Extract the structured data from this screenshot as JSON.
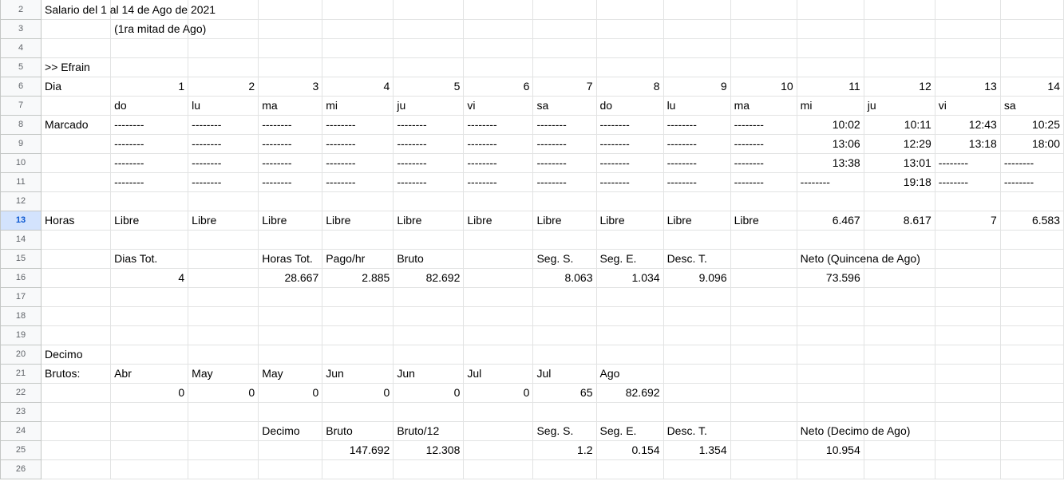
{
  "rows": [
    {
      "num": "2",
      "cells": [
        {
          "c": 1,
          "v": "Salario del 1 al 14 de Ago de 2021"
        }
      ]
    },
    {
      "num": "3",
      "cells": [
        {
          "c": 2,
          "v": "(1ra mitad de Ago)"
        }
      ]
    },
    {
      "num": "4",
      "cells": []
    },
    {
      "num": "5",
      "cells": [
        {
          "c": 1,
          "v": ">> Efrain"
        }
      ]
    },
    {
      "num": "6",
      "cells": [
        {
          "c": 1,
          "v": "Dia"
        },
        {
          "c": 2,
          "v": "1",
          "n": true
        },
        {
          "c": 3,
          "v": "2",
          "n": true
        },
        {
          "c": 4,
          "v": "3",
          "n": true
        },
        {
          "c": 5,
          "v": "4",
          "n": true
        },
        {
          "c": 6,
          "v": "5",
          "n": true
        },
        {
          "c": 7,
          "v": "6",
          "n": true
        },
        {
          "c": 8,
          "v": "7",
          "n": true
        },
        {
          "c": 9,
          "v": "8",
          "n": true
        },
        {
          "c": 10,
          "v": "9",
          "n": true
        },
        {
          "c": 11,
          "v": "10",
          "n": true
        },
        {
          "c": 12,
          "v": "11",
          "n": true
        },
        {
          "c": 13,
          "v": "12",
          "n": true
        },
        {
          "c": 14,
          "v": "13",
          "n": true
        },
        {
          "c": 15,
          "v": "14",
          "n": true
        }
      ]
    },
    {
      "num": "7",
      "cells": [
        {
          "c": 2,
          "v": "do"
        },
        {
          "c": 3,
          "v": "lu"
        },
        {
          "c": 4,
          "v": "ma"
        },
        {
          "c": 5,
          "v": "mi"
        },
        {
          "c": 6,
          "v": "ju"
        },
        {
          "c": 7,
          "v": "vi"
        },
        {
          "c": 8,
          "v": "sa"
        },
        {
          "c": 9,
          "v": "do"
        },
        {
          "c": 10,
          "v": "lu"
        },
        {
          "c": 11,
          "v": "ma"
        },
        {
          "c": 12,
          "v": "mi"
        },
        {
          "c": 13,
          "v": "ju"
        },
        {
          "c": 14,
          "v": "vi"
        },
        {
          "c": 15,
          "v": "sa"
        }
      ]
    },
    {
      "num": "8",
      "cells": [
        {
          "c": 1,
          "v": "Marcado"
        },
        {
          "c": 2,
          "v": "--------"
        },
        {
          "c": 3,
          "v": "--------"
        },
        {
          "c": 4,
          "v": "--------"
        },
        {
          "c": 5,
          "v": "--------"
        },
        {
          "c": 6,
          "v": "--------"
        },
        {
          "c": 7,
          "v": "--------"
        },
        {
          "c": 8,
          "v": "--------"
        },
        {
          "c": 9,
          "v": "--------"
        },
        {
          "c": 10,
          "v": "--------"
        },
        {
          "c": 11,
          "v": "--------"
        },
        {
          "c": 12,
          "v": "10:02",
          "n": true
        },
        {
          "c": 13,
          "v": "10:11",
          "n": true
        },
        {
          "c": 14,
          "v": "12:43",
          "n": true
        },
        {
          "c": 15,
          "v": "10:25",
          "n": true
        }
      ]
    },
    {
      "num": "9",
      "cells": [
        {
          "c": 2,
          "v": "--------"
        },
        {
          "c": 3,
          "v": "--------"
        },
        {
          "c": 4,
          "v": "--------"
        },
        {
          "c": 5,
          "v": "--------"
        },
        {
          "c": 6,
          "v": "--------"
        },
        {
          "c": 7,
          "v": "--------"
        },
        {
          "c": 8,
          "v": "--------"
        },
        {
          "c": 9,
          "v": "--------"
        },
        {
          "c": 10,
          "v": "--------"
        },
        {
          "c": 11,
          "v": "--------"
        },
        {
          "c": 12,
          "v": "13:06",
          "n": true
        },
        {
          "c": 13,
          "v": "12:29",
          "n": true
        },
        {
          "c": 14,
          "v": "13:18",
          "n": true
        },
        {
          "c": 15,
          "v": "18:00",
          "n": true
        }
      ]
    },
    {
      "num": "10",
      "cells": [
        {
          "c": 2,
          "v": "--------"
        },
        {
          "c": 3,
          "v": "--------"
        },
        {
          "c": 4,
          "v": "--------"
        },
        {
          "c": 5,
          "v": "--------"
        },
        {
          "c": 6,
          "v": "--------"
        },
        {
          "c": 7,
          "v": "--------"
        },
        {
          "c": 8,
          "v": "--------"
        },
        {
          "c": 9,
          "v": "--------"
        },
        {
          "c": 10,
          "v": "--------"
        },
        {
          "c": 11,
          "v": "--------"
        },
        {
          "c": 12,
          "v": "13:38",
          "n": true
        },
        {
          "c": 13,
          "v": "13:01",
          "n": true
        },
        {
          "c": 14,
          "v": "--------"
        },
        {
          "c": 15,
          "v": "--------"
        }
      ]
    },
    {
      "num": "11",
      "cells": [
        {
          "c": 2,
          "v": "--------"
        },
        {
          "c": 3,
          "v": "--------"
        },
        {
          "c": 4,
          "v": "--------"
        },
        {
          "c": 5,
          "v": "--------"
        },
        {
          "c": 6,
          "v": "--------"
        },
        {
          "c": 7,
          "v": "--------"
        },
        {
          "c": 8,
          "v": "--------"
        },
        {
          "c": 9,
          "v": "--------"
        },
        {
          "c": 10,
          "v": "--------"
        },
        {
          "c": 11,
          "v": "--------"
        },
        {
          "c": 12,
          "v": "--------"
        },
        {
          "c": 13,
          "v": "19:18",
          "n": true
        },
        {
          "c": 14,
          "v": "--------"
        },
        {
          "c": 15,
          "v": "--------"
        }
      ]
    },
    {
      "num": "12",
      "cells": []
    },
    {
      "num": "13",
      "selected": true,
      "cells": [
        {
          "c": 1,
          "v": "Horas"
        },
        {
          "c": 2,
          "v": "Libre"
        },
        {
          "c": 3,
          "v": "Libre"
        },
        {
          "c": 4,
          "v": "Libre"
        },
        {
          "c": 5,
          "v": "Libre"
        },
        {
          "c": 6,
          "v": "Libre"
        },
        {
          "c": 7,
          "v": "Libre"
        },
        {
          "c": 8,
          "v": "Libre"
        },
        {
          "c": 9,
          "v": "Libre"
        },
        {
          "c": 10,
          "v": "Libre"
        },
        {
          "c": 11,
          "v": "Libre"
        },
        {
          "c": 12,
          "v": "6.467",
          "n": true
        },
        {
          "c": 13,
          "v": "8.617",
          "n": true
        },
        {
          "c": 14,
          "v": "7",
          "n": true
        },
        {
          "c": 15,
          "v": "6.583",
          "n": true
        }
      ]
    },
    {
      "num": "14",
      "cells": []
    },
    {
      "num": "15",
      "cells": [
        {
          "c": 2,
          "v": "Dias Tot."
        },
        {
          "c": 4,
          "v": "Horas Tot."
        },
        {
          "c": 5,
          "v": "Pago/hr"
        },
        {
          "c": 6,
          "v": "Bruto"
        },
        {
          "c": 8,
          "v": "Seg. S."
        },
        {
          "c": 9,
          "v": "Seg. E."
        },
        {
          "c": 10,
          "v": "Desc. T."
        },
        {
          "c": 12,
          "v": "Neto (Quincena de Ago)"
        }
      ]
    },
    {
      "num": "16",
      "cells": [
        {
          "c": 2,
          "v": "4",
          "n": true
        },
        {
          "c": 4,
          "v": "28.667",
          "n": true
        },
        {
          "c": 5,
          "v": "2.885",
          "n": true
        },
        {
          "c": 6,
          "v": "82.692",
          "n": true
        },
        {
          "c": 8,
          "v": "8.063",
          "n": true
        },
        {
          "c": 9,
          "v": "1.034",
          "n": true
        },
        {
          "c": 10,
          "v": "9.096",
          "n": true
        },
        {
          "c": 12,
          "v": "73.596",
          "n": true
        }
      ]
    },
    {
      "num": "17",
      "cells": []
    },
    {
      "num": "18",
      "cells": []
    },
    {
      "num": "19",
      "cells": []
    },
    {
      "num": "20",
      "cells": [
        {
          "c": 1,
          "v": "Decimo"
        }
      ]
    },
    {
      "num": "21",
      "cells": [
        {
          "c": 1,
          "v": "Brutos:"
        },
        {
          "c": 2,
          "v": "Abr"
        },
        {
          "c": 3,
          "v": "May"
        },
        {
          "c": 4,
          "v": "May"
        },
        {
          "c": 5,
          "v": "Jun"
        },
        {
          "c": 6,
          "v": "Jun"
        },
        {
          "c": 7,
          "v": "Jul"
        },
        {
          "c": 8,
          "v": "Jul"
        },
        {
          "c": 9,
          "v": "Ago"
        }
      ]
    },
    {
      "num": "22",
      "cells": [
        {
          "c": 2,
          "v": "0",
          "n": true
        },
        {
          "c": 3,
          "v": "0",
          "n": true
        },
        {
          "c": 4,
          "v": "0",
          "n": true
        },
        {
          "c": 5,
          "v": "0",
          "n": true
        },
        {
          "c": 6,
          "v": "0",
          "n": true
        },
        {
          "c": 7,
          "v": "0",
          "n": true
        },
        {
          "c": 8,
          "v": "65",
          "n": true
        },
        {
          "c": 9,
          "v": "82.692",
          "n": true
        }
      ]
    },
    {
      "num": "23",
      "cells": []
    },
    {
      "num": "24",
      "cells": [
        {
          "c": 4,
          "v": "Decimo"
        },
        {
          "c": 5,
          "v": "Bruto"
        },
        {
          "c": 6,
          "v": "Bruto/12"
        },
        {
          "c": 8,
          "v": "Seg. S."
        },
        {
          "c": 9,
          "v": "Seg. E."
        },
        {
          "c": 10,
          "v": "Desc. T."
        },
        {
          "c": 12,
          "v": "Neto (Decimo de Ago)"
        }
      ]
    },
    {
      "num": "25",
      "cells": [
        {
          "c": 5,
          "v": "147.692",
          "n": true
        },
        {
          "c": 6,
          "v": "12.308",
          "n": true
        },
        {
          "c": 8,
          "v": "1.2",
          "n": true
        },
        {
          "c": 9,
          "v": "0.154",
          "n": true
        },
        {
          "c": 10,
          "v": "1.354",
          "n": true
        },
        {
          "c": 12,
          "v": "10.954",
          "n": true
        }
      ]
    },
    {
      "num": "26",
      "cells": []
    }
  ]
}
